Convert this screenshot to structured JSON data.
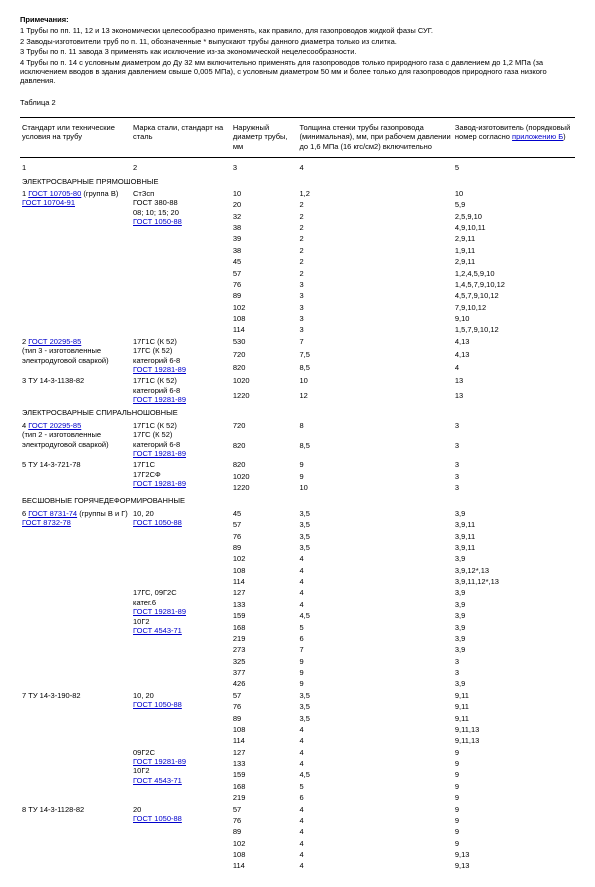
{
  "notes_title": "Примечания:",
  "notes": [
    "1 Трубы по пп. 11, 12 и 13 экономически целесообразно применять, как правило, для газопроводов жидкой фазы СУГ.",
    "2 Заводы-изготовители труб по п. 11, обозначенные * выпускают трубы данного диаметра только из слитка.",
    "3 Трубы по п. 11 завода 3 применять как исключение из-за экономической нецелесообразности.",
    "4 Трубы по п. 14 с условным диаметром до Ду 32 мм включительно применять для газопроводов только природного газа с давлением до 1,2 МПа (за исключением вводов в здания давлением свыше 0,005 МПа), с условным диаметром 50 мм и более только для газопроводов природного газа низкого давления."
  ],
  "table_caption": "Таблица 2",
  "headers": {
    "c1": "Стандарт или технические условия на трубу",
    "c2": "Марка стали, стандарт на сталь",
    "c3": "Наружный диаметр трубы, мм",
    "c4": "Толщина стенки трубы газопровода (минимальная), мм, при рабочем давлении до 1,6 МПа (16 кгс/см2) включительно",
    "c5": "Завод-изготовитель (порядковый номер согласно ",
    "c5link": "приложению Б",
    "c5tail": ")"
  },
  "numrow": [
    "1",
    "2",
    "3",
    "4",
    "5"
  ],
  "sections": [
    {
      "title": "ЭЛЕКТРОСВАРНЫЕ ПРЯМОШОВНЫЕ",
      "groups": [
        {
          "col1": [
            {
              "t": "1 "
            },
            {
              "a": "ГОСТ 10705-80"
            },
            {
              "t": " (группа В)"
            },
            {
              "br": 1
            },
            {
              "a": "ГОСТ 10704-91"
            }
          ],
          "col2": [
            {
              "t": "СтЗсп"
            },
            {
              "br": 1
            },
            {
              "t": "ГОСТ 380-88"
            },
            {
              "br": 1
            },
            {
              "t": "08; 10; 15; 20"
            },
            {
              "br": 1
            },
            {
              "a": "ГОСТ 1050-88"
            }
          ],
          "rows": [
            [
              "10",
              "1,2",
              "10"
            ],
            [
              "20",
              "2",
              "5,9"
            ],
            [
              "32",
              "2",
              "2,5,9,10"
            ],
            [
              "38",
              "2",
              "4,9,10,11"
            ],
            [
              "39",
              "2",
              "2,9,11"
            ],
            [
              "38",
              "2",
              "1,9,11"
            ],
            [
              "45",
              "2",
              "2,9,11"
            ],
            [
              "57",
              "2",
              "1,2,4,5,9,10"
            ],
            [
              "76",
              "3",
              "1,4,5,7,9,10,12"
            ],
            [
              "89",
              "3",
              "4,5,7,9,10,12"
            ],
            [
              "102",
              "3",
              "7,9,10,12"
            ],
            [
              "108",
              "3",
              "9,10"
            ],
            [
              "114",
              "3",
              "1,5,7,9,10,12"
            ]
          ]
        },
        {
          "col1": [
            {
              "t": "2 "
            },
            {
              "a": "ГОСТ 20295-85"
            },
            {
              "br": 1
            },
            {
              "t": "(тип 3 - изготовленные электродуговой сваркой)"
            }
          ],
          "col2": [
            {
              "t": "17Г1С (К 52)"
            },
            {
              "br": 1
            },
            {
              "t": "17ГС (К 52)"
            },
            {
              "br": 1
            },
            {
              "t": "категорий 6-8"
            },
            {
              "br": 1
            },
            {
              "a": "ГОСТ 19281-89"
            }
          ],
          "rows": [
            [
              "530",
              "7",
              "4,13"
            ],
            [
              "720",
              "7,5",
              "4,13"
            ],
            [
              "820",
              "8,5",
              "4"
            ]
          ]
        },
        {
          "col1": [
            {
              "t": "3 ТУ 14-3-1138-82"
            }
          ],
          "col2": [
            {
              "t": "17Г1С (К 52)"
            },
            {
              "br": 1
            },
            {
              "t": "категорий 6-8"
            },
            {
              "br": 1
            },
            {
              "a": "ГОСТ 19281-89"
            }
          ],
          "rows": [
            [
              "1020",
              "10",
              "13"
            ],
            [
              "1220",
              "12",
              "13"
            ]
          ]
        }
      ]
    },
    {
      "title": "ЭЛЕКТРОСВАРНЫЕ СПИРАЛЬНОШОВНЫЕ",
      "groups": [
        {
          "col1": [
            {
              "t": "4 "
            },
            {
              "a": "ГОСТ 20295-85"
            },
            {
              "br": 1
            },
            {
              "t": "(тип 2 - изготовленные электродуговой сваркой)"
            }
          ],
          "col2": [
            {
              "t": "17Г1С (К 52)"
            },
            {
              "br": 1
            },
            {
              "t": "17ГС (К 52)"
            },
            {
              "br": 1
            },
            {
              "t": "категорий 6-8"
            },
            {
              "br": 1
            },
            {
              "a": "ГОСТ 19281-89"
            }
          ],
          "rows": [
            [
              "720",
              "8",
              "3"
            ],
            [
              "820",
              "8,5",
              "3"
            ]
          ]
        },
        {
          "col1": [
            {
              "t": "5 ТУ 14-3-721-78"
            }
          ],
          "col2": [
            {
              "t": "17Г1С"
            },
            {
              "br": 1
            },
            {
              "t": "17Г2СФ"
            },
            {
              "br": 1
            },
            {
              "a": "ГОСТ 19281-89"
            }
          ],
          "rows": [
            [
              "820",
              "9",
              "3"
            ],
            [
              "1020",
              "9",
              "3"
            ],
            [
              "1220",
              "10",
              "3"
            ]
          ]
        }
      ]
    },
    {
      "title": "БЕСШОВНЫЕ ГОРЯЧЕДЕФОРМИРОВАННЫЕ",
      "groups": [
        {
          "col1": [
            {
              "t": "6 "
            },
            {
              "a": "ГОСТ 8731-74"
            },
            {
              "t": " (группы В и Г) "
            },
            {
              "a": "ГОСТ 8732-78"
            }
          ],
          "col2": [
            {
              "t": "10, 20"
            },
            {
              "br": 1
            },
            {
              "a": "ГОСТ 1050-88"
            }
          ],
          "rows": [
            [
              "45",
              "3,5",
              "3,9"
            ],
            [
              "57",
              "3,5",
              "3,9,11"
            ],
            [
              "76",
              "3,5",
              "3,9,11"
            ],
            [
              "89",
              "3,5",
              "3,9,11"
            ],
            [
              "102",
              "4",
              "3,9"
            ],
            [
              "108",
              "4",
              "3,9,12*,13"
            ],
            [
              "114",
              "4",
              "3,9,11,12*,13"
            ]
          ]
        },
        {
          "col1": [],
          "col2": [
            {
              "t": "17ГС, 09Г2С"
            },
            {
              "br": 1
            },
            {
              "t": "катег.6"
            },
            {
              "br": 1
            },
            {
              "a": "ГОСТ 19281-89"
            },
            {
              "br": 1
            },
            {
              "t": "10Г2"
            },
            {
              "br": 1
            },
            {
              "a": "ГОСТ 4543-71"
            }
          ],
          "rows": [
            [
              "127",
              "4",
              "3,9"
            ],
            [
              "133",
              "4",
              "3,9"
            ],
            [
              "159",
              "4,5",
              "3,9"
            ],
            [
              "168",
              "5",
              "3,9"
            ],
            [
              "219",
              "6",
              "3,9"
            ],
            [
              "273",
              "7",
              "3,9"
            ],
            [
              "325",
              "9",
              "3"
            ],
            [
              "377",
              "9",
              "3"
            ],
            [
              "426",
              "9",
              "3,9"
            ]
          ]
        },
        {
          "col1": [
            {
              "t": "7 ТУ 14-3-190-82"
            }
          ],
          "col2": [
            {
              "t": "10, 20"
            },
            {
              "br": 1
            },
            {
              "a": "ГОСТ 1050-88"
            }
          ],
          "rows": [
            [
              "57",
              "3,5",
              "9,11"
            ],
            [
              "76",
              "3,5",
              "9,11"
            ],
            [
              "89",
              "3,5",
              "9,11"
            ],
            [
              "108",
              "4",
              "9,11,13"
            ],
            [
              "114",
              "4",
              "9,11,13"
            ]
          ]
        },
        {
          "col1": [],
          "col2": [
            {
              "t": "09Г2С"
            },
            {
              "br": 1
            },
            {
              "a": "ГОСТ 19281-89"
            },
            {
              "br": 1
            },
            {
              "t": "10Г2"
            },
            {
              "br": 1
            },
            {
              "a": "ГОСТ 4543-71"
            }
          ],
          "rows": [
            [
              "127",
              "4",
              "9"
            ],
            [
              "133",
              "4",
              "9"
            ],
            [
              "159",
              "4,5",
              "9"
            ],
            [
              "168",
              "5",
              "9"
            ],
            [
              "219",
              "6",
              "9"
            ]
          ]
        },
        {
          "col1": [
            {
              "t": "8 ТУ 14-3-1128-82"
            }
          ],
          "col2": [
            {
              "t": "20"
            },
            {
              "br": 1
            },
            {
              "a": "ГОСТ 1050-88"
            }
          ],
          "rows": [
            [
              "57",
              "4",
              "9"
            ],
            [
              "76",
              "4",
              "9"
            ],
            [
              "89",
              "4",
              "9"
            ],
            [
              "102",
              "4",
              "9"
            ],
            [
              "108",
              "4",
              "9,13"
            ],
            [
              "114",
              "4",
              "9,13"
            ]
          ]
        }
      ]
    }
  ]
}
